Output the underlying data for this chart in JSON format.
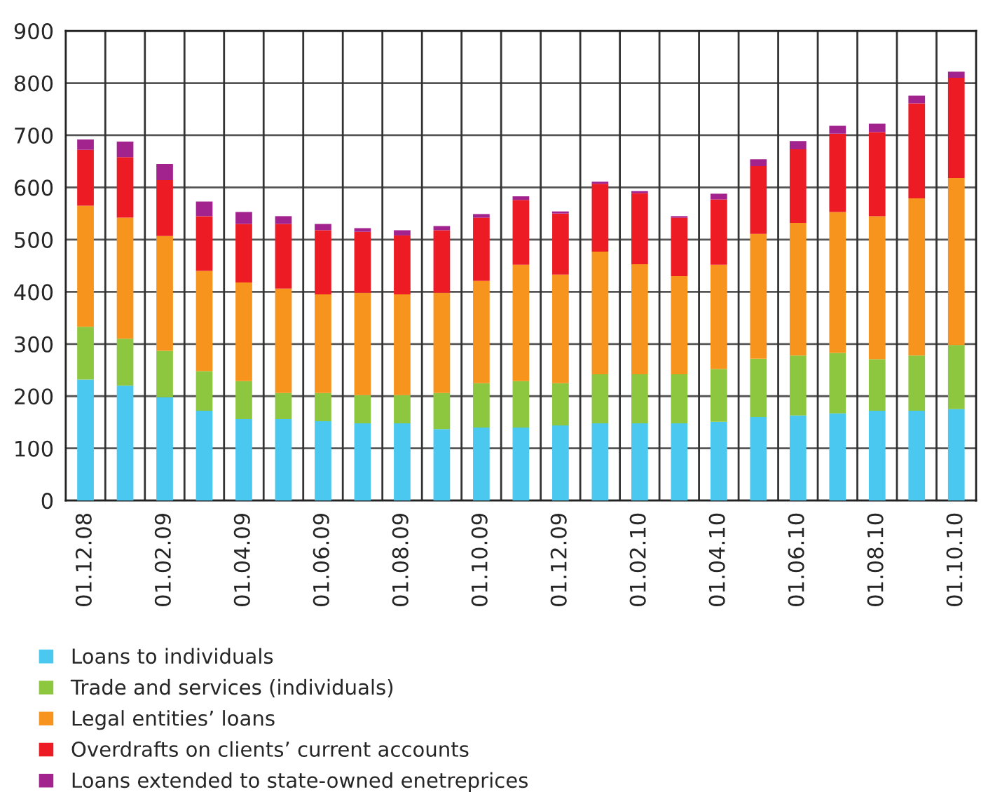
{
  "chart_data": {
    "type": "bar",
    "stacked": true,
    "categories": [
      "01.12.08",
      null,
      "01.02.09",
      null,
      "01.04.09",
      null,
      "01.06.09",
      null,
      "01.08.09",
      null,
      "01.10.09",
      null,
      "01.12.09",
      null,
      "01.02.10",
      null,
      "01.04.10",
      null,
      "01.06.10",
      null,
      "01.08.10",
      null,
      "01.10.10"
    ],
    "series": [
      {
        "name": "Loans to individuals",
        "color": "#4bc8f0",
        "values": [
          232,
          220,
          198,
          172,
          156,
          156,
          152,
          148,
          148,
          137,
          140,
          140,
          144,
          148,
          148,
          148,
          151,
          160,
          163,
          167,
          172,
          172,
          175
        ]
      },
      {
        "name": "Trade and services (individuals)",
        "color": "#8dc63f",
        "values": [
          101,
          90,
          89,
          76,
          73,
          50,
          54,
          54,
          54,
          69,
          85,
          89,
          81,
          94,
          94,
          94,
          101,
          112,
          115,
          116,
          99,
          106,
          123
        ]
      },
      {
        "name": "Legal entities’ loans",
        "color": "#f7941d",
        "values": [
          232,
          232,
          220,
          192,
          189,
          200,
          189,
          196,
          193,
          192,
          196,
          223,
          208,
          235,
          211,
          188,
          200,
          239,
          254,
          270,
          274,
          301,
          320
        ]
      },
      {
        "name": "Overdrafts on clients’ current accounts",
        "color": "#ed1c24",
        "values": [
          107,
          116,
          107,
          105,
          112,
          124,
          123,
          117,
          113,
          120,
          121,
          124,
          117,
          130,
          136,
          112,
          125,
          130,
          141,
          150,
          161,
          182,
          192
        ]
      },
      {
        "name": "Loans extended to state-owned enetreprices",
        "color": "#a3238e",
        "values": [
          20,
          30,
          31,
          28,
          23,
          15,
          12,
          7,
          10,
          8,
          7,
          7,
          4,
          4,
          4,
          3,
          11,
          13,
          16,
          15,
          16,
          15,
          12
        ]
      }
    ],
    "ylim": [
      0,
      900
    ],
    "yticks": [
      0,
      100,
      200,
      300,
      400,
      500,
      600,
      700,
      800,
      900
    ],
    "grid": true,
    "legend": "bottom"
  }
}
